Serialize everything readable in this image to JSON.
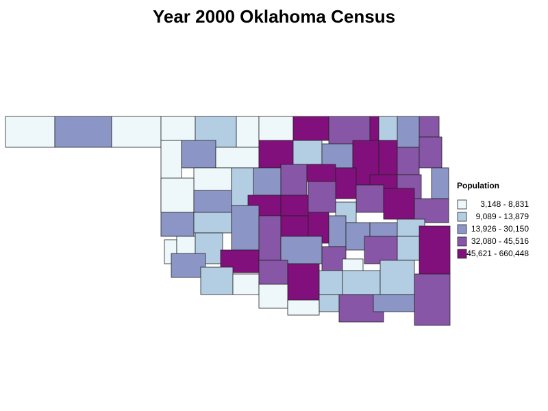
{
  "title": "Year 2000 Oklahoma Census",
  "legend": {
    "title": "Population",
    "items": [
      {
        "label": "3,148 - 8,831",
        "color": "#eef8fa"
      },
      {
        "label": "9,089 - 13,879",
        "color": "#b3cde3"
      },
      {
        "label": "13,926 - 30,150",
        "color": "#8c96c6"
      },
      {
        "label": "32,080 - 45,516",
        "color": "#8856a7"
      },
      {
        "label": "45,621 - 660,448",
        "color": "#810f7c"
      }
    ]
  }
}
